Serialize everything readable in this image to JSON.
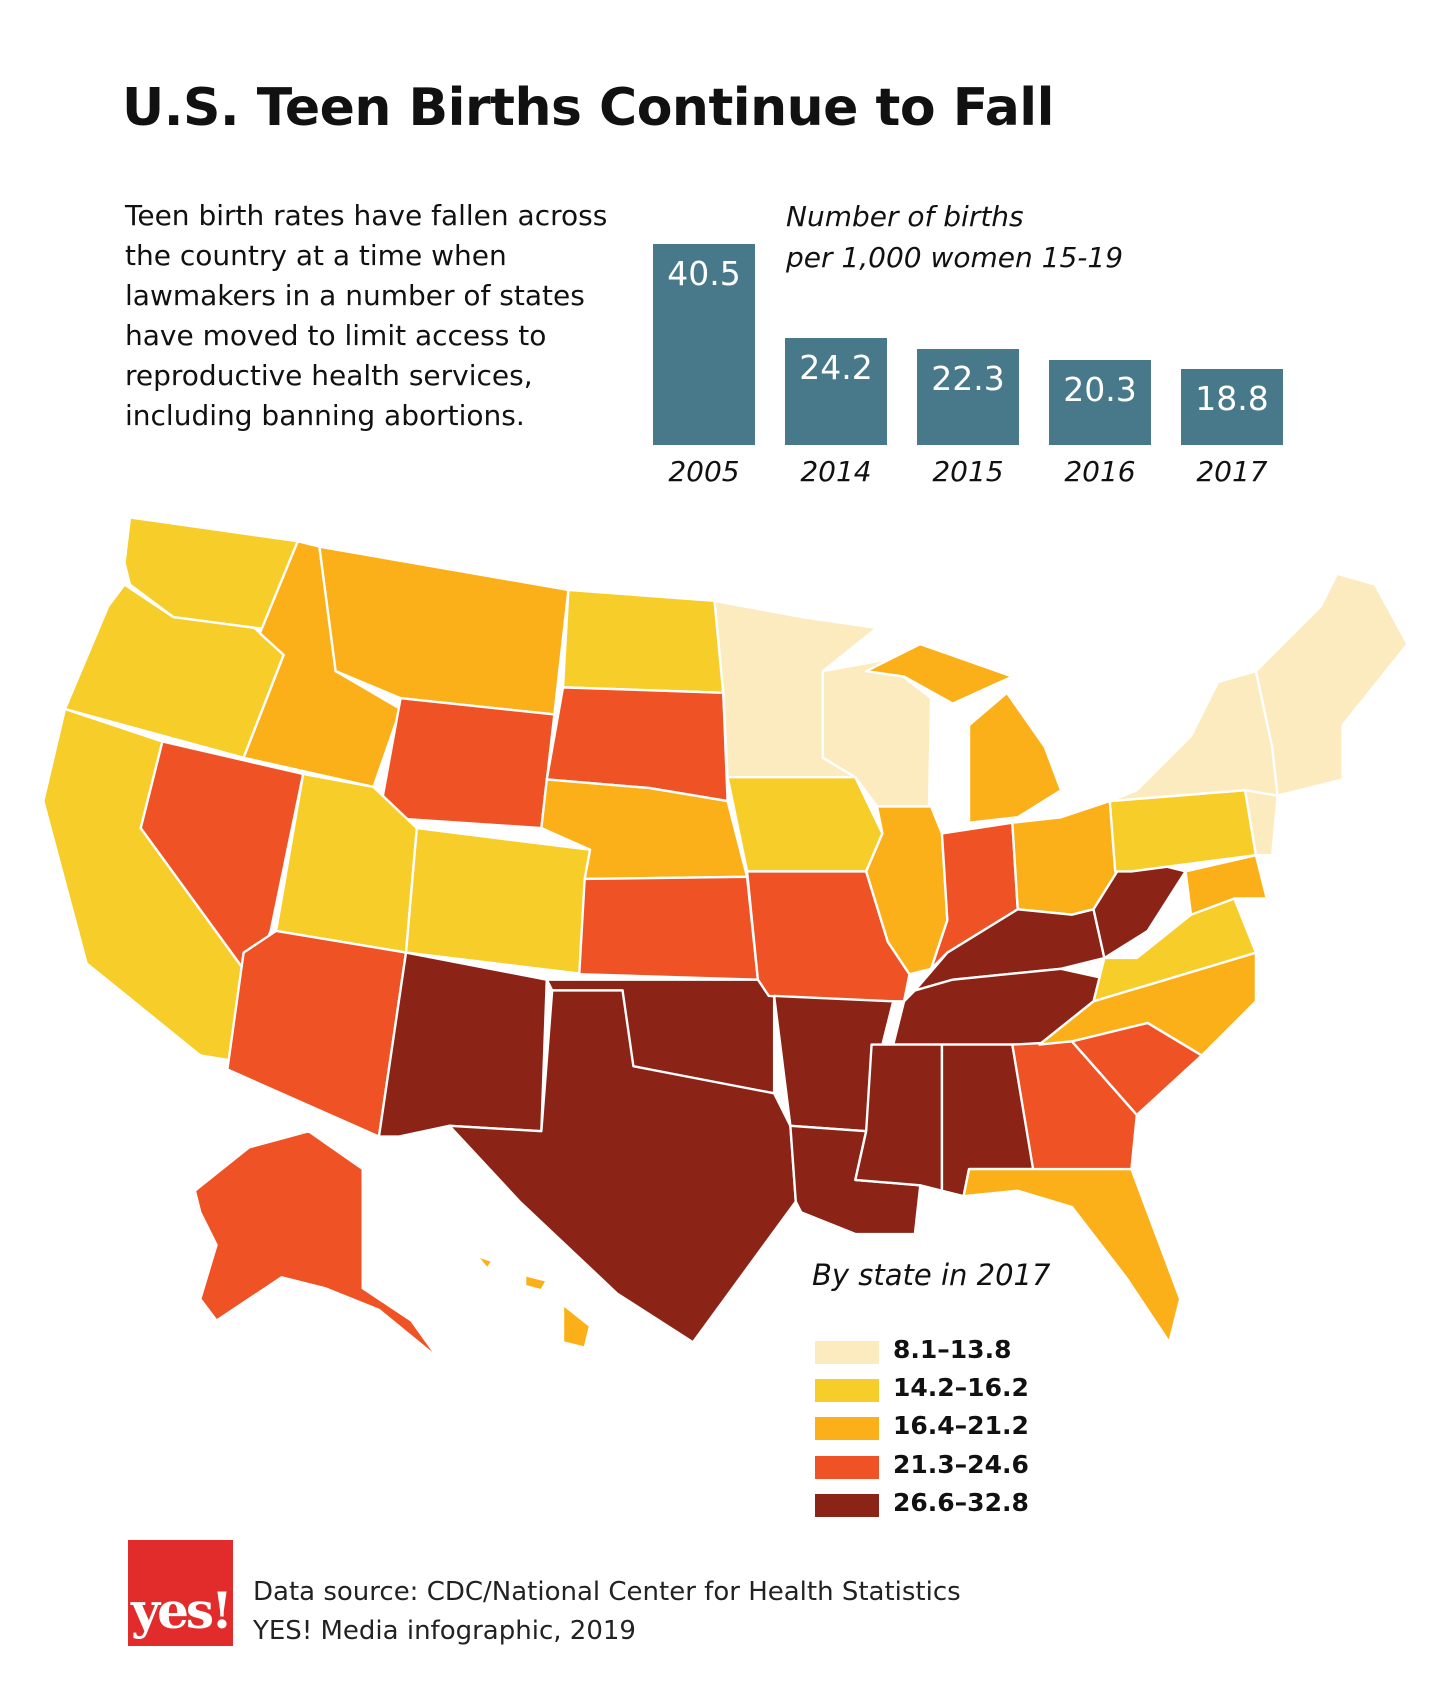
{
  "title": "U.S. Teen Births Continue to Fall",
  "intro": "Teen birth rates have fallen across the country at a time when lawmakers in a number of states have moved to limit access to reproductive health services, including banning abortions.",
  "chart_data": [
    {
      "type": "bar",
      "title": "Number of births per 1,000 women 15-19",
      "caption_lines": [
        "Number of births",
        "per 1,000 women 15-19"
      ],
      "categories": [
        "2005",
        "2014",
        "2015",
        "2016",
        "2017"
      ],
      "values": [
        40.5,
        24.2,
        22.3,
        20.3,
        18.8
      ],
      "value_labels": [
        "40.5",
        "24.2",
        "22.3",
        "20.3",
        "18.8"
      ],
      "bar_color": "#48798b",
      "xlabel": "",
      "ylabel": ""
    },
    {
      "type": "choropleth",
      "title": "By state in 2017",
      "legend": [
        {
          "label": "8.1–13.8",
          "color": "#fdebc0"
        },
        {
          "label": "14.2–16.2",
          "color": "#f7cd2a"
        },
        {
          "label": "16.4–21.2",
          "color": "#fbb01a"
        },
        {
          "label": "21.3–24.6",
          "color": "#ef5224"
        },
        {
          "label": "26.6–32.8",
          "color": "#8b2316"
        }
      ]
    }
  ],
  "logo": {
    "text": "yes!",
    "color": "#e22b2b"
  },
  "footer": {
    "source": "Data source:  CDC/National Center for Health Statistics",
    "credit": "YES! Media infographic, 2019"
  }
}
